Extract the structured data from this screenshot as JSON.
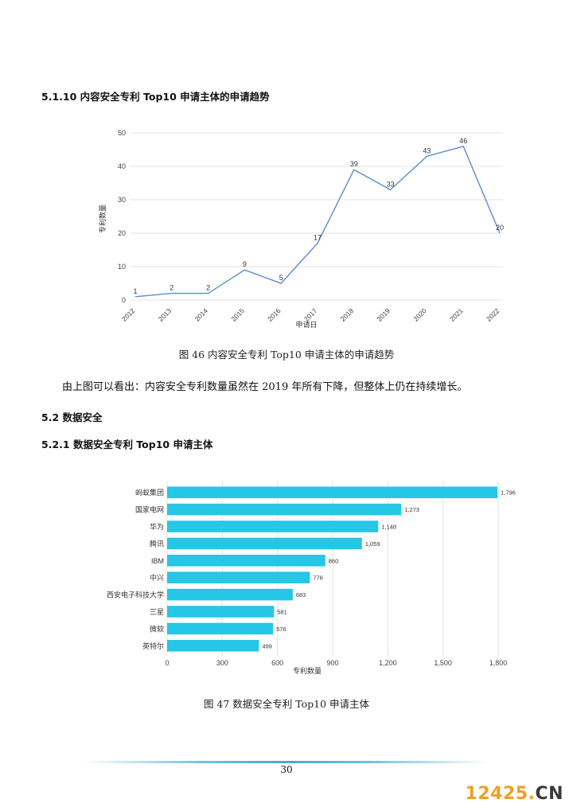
{
  "section_heading_1": "5.1.10 内容安全专利 Top10 申请主体的申请趋势",
  "caption_1": "图 46 内容安全专利 Top10 申请主体的申请趋势",
  "paragraph_1": "由上图可以看出：内容安全专利数量虽然在 2019 年所有下降，但整体上仍在持续增长。",
  "section_heading_2": "5.2 数据安全",
  "section_heading_3": "5.2.1 数据安全专利 Top10 申请主体",
  "caption_2": "图 47 数据安全专利 Top10 申请主体",
  "page_number": "30",
  "watermark": {
    "main": "12425.",
    "suffix": "CN"
  },
  "chart_data": [
    {
      "type": "line",
      "xlabel": "申请日",
      "ylabel": "专利数量",
      "x": [
        "2012",
        "2013",
        "2014",
        "2015",
        "2016",
        "2017",
        "2018",
        "2019",
        "2020",
        "2021",
        "2022"
      ],
      "values": [
        1,
        2,
        2,
        9,
        5,
        17,
        39,
        33,
        43,
        46,
        20
      ],
      "ylim": [
        0,
        50
      ],
      "yticks": [
        "0",
        "10",
        "20",
        "30",
        "40",
        "50"
      ],
      "grid": true,
      "color": "#5b8ec9"
    },
    {
      "type": "bar",
      "orientation": "horizontal",
      "xlabel": "专利数量",
      "categories": [
        "蚂蚁集团",
        "国家电网",
        "华为",
        "腾讯",
        "IBM",
        "中兴",
        "西安电子科技大学",
        "三星",
        "微软",
        "英特尔"
      ],
      "values": [
        1796,
        1273,
        1148,
        1059,
        860,
        776,
        683,
        581,
        576,
        499
      ],
      "value_labels": [
        "1,796",
        "1,273",
        "1,148",
        "1,059",
        "860",
        "776",
        "683",
        "581",
        "576",
        "499"
      ],
      "xlim": [
        0,
        1800
      ],
      "xticks": [
        "0",
        "300",
        "600",
        "900",
        "1,200",
        "1,500",
        "1,800"
      ],
      "grid": true,
      "color": "#26c6e6"
    }
  ]
}
